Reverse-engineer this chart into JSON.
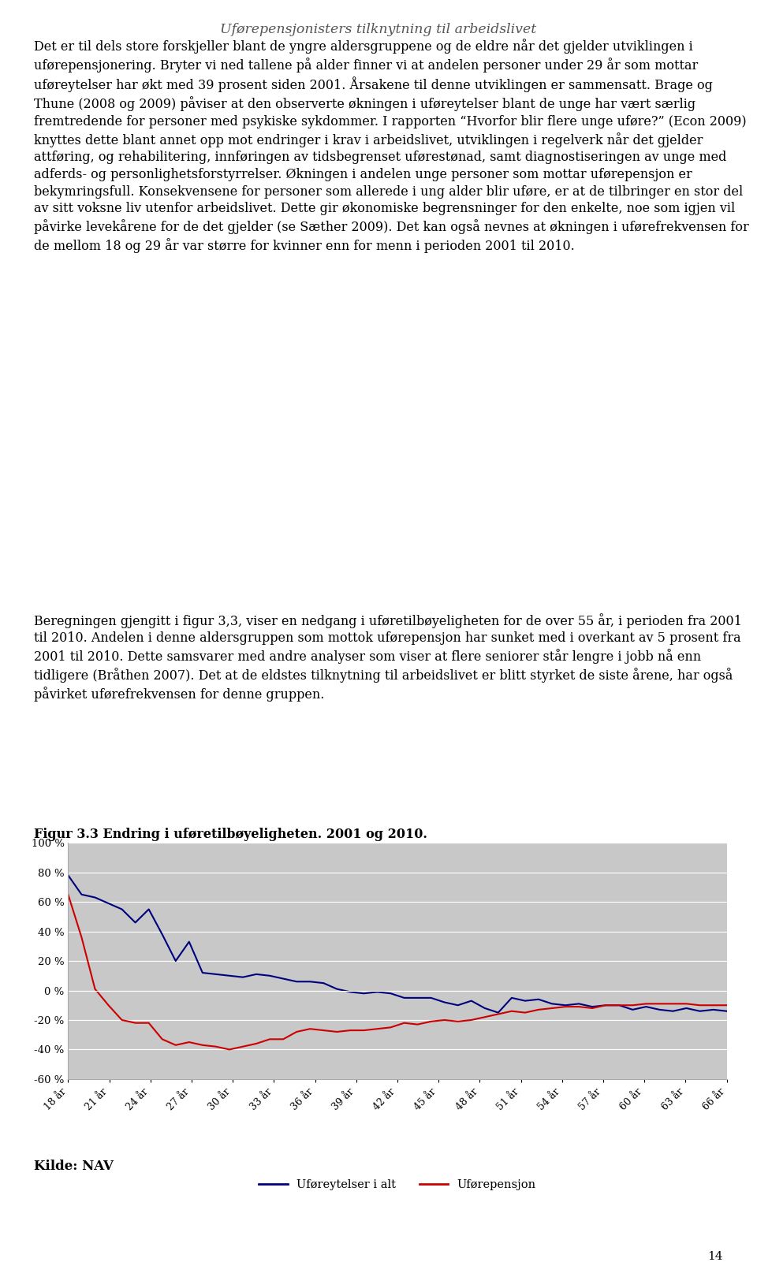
{
  "page_title": "Uførepensjonisters tilknytning til arbeidslivet",
  "chart_title": "Figur 3.3 Endring i uføretilbøyeligheten. 2001 og 2010.",
  "x_labels": [
    "18 år",
    "21 år",
    "24 år",
    "27 år",
    "30 år",
    "33 år",
    "36 år",
    "39 år",
    "42 år",
    "45 år",
    "48 år",
    "51 år",
    "54 år",
    "57 år",
    "60 år",
    "63 år",
    "66 år"
  ],
  "blue_values": [
    78,
    65,
    63,
    59,
    55,
    46,
    55,
    38,
    20,
    33,
    12,
    11,
    10,
    9,
    11,
    10,
    8,
    6,
    6,
    5,
    1,
    -1,
    -2,
    -1,
    -2,
    -5,
    -5,
    -5,
    -8,
    -10,
    -7,
    -12,
    -15,
    -5,
    -7,
    -6,
    -9,
    -10,
    -9,
    -11,
    -10,
    -10,
    -13,
    -11,
    -13,
    -14,
    -12,
    -14,
    -13,
    -14
  ],
  "red_values": [
    65,
    36,
    1,
    -10,
    -20,
    -22,
    -22,
    -33,
    -37,
    -35,
    -37,
    -38,
    -40,
    -38,
    -36,
    -33,
    -33,
    -28,
    -26,
    -27,
    -28,
    -27,
    -27,
    -26,
    -25,
    -22,
    -23,
    -21,
    -20,
    -21,
    -20,
    -18,
    -16,
    -14,
    -15,
    -13,
    -12,
    -11,
    -11,
    -12,
    -10,
    -10,
    -10,
    -9,
    -9,
    -9,
    -9,
    -10,
    -10,
    -10
  ],
  "blue_color": "#00007f",
  "red_color": "#cc0000",
  "background_color": "#c8c8c8",
  "ylim": [
    -60,
    100
  ],
  "yticks": [
    -60,
    -40,
    -20,
    0,
    20,
    40,
    60,
    80,
    100
  ],
  "legend_blue": "Uføreytelser i alt",
  "legend_red": "Uførepensjon",
  "source": "Kilde: NAV",
  "para1": "Det er til dels store forskjeller blant de yngre aldersgruppene og de eldre når det gjelder utviklingen i uførepensjonering. Bryter vi ned tallene på alder finner vi at andelen personer under 29 år som mottar uføreytelser har økt med 39 prosent siden 2001. Årsakene til denne utviklingen er sammensatt. Brage og Thune (2008 og 2009) påviser at den observerte økningen i uføreytelser blant de unge har vært særlig fremtredende for personer med psykiske sykdommer. I rapporten “Hvorfor blir flere unge uføre?” (Econ 2009) knyttes dette blant annet opp mot endringer i krav i arbeidslivet, utviklingen i regelverk når det gjelder attføring, og rehabilitering, innføringen av tidsbegrenset uførestønad, samt diagnostiseringen av unge med adferds- og personlighetsforstyrrelser. Økningen i andelen unge personer som mottar uførepensjon er bekymringsfull. Konsekvensene for personer som allerede i ung alder blir uføre, er at de tilbringer en stor del av sitt voksne liv utenfor arbeidslivet. Dette gir økonomiske begrensninger for den enkelte, noe som igjen vil påvirke levekårene for de det gjelder (se Sæther 2009). Det kan også nevnes at økningen i uførefrekvensen for de mellom 18 og 29 år var større for kvinner enn for menn i perioden 2001 til 2010.",
  "para2": "Beregningen gjengitt i figur 3,3, viser en nedgang i uføretilbøyeligheten for de over 55 år, i perioden fra 2001 til 2010. Andelen i denne aldersgruppen som mottok uførepensjon har sunket med i overkant av 5 prosent fra 2001 til 2010. Dette samsvarer med andre analyser som viser at flere seniorer står lengre i jobb nå enn tidligere (Bråthen 2007). Det at de eldstes tilknytning til arbeidslivet er blitt styrket de siste årene, har også påvirket uførefrekvensen for denne gruppen.",
  "page_number": "14"
}
